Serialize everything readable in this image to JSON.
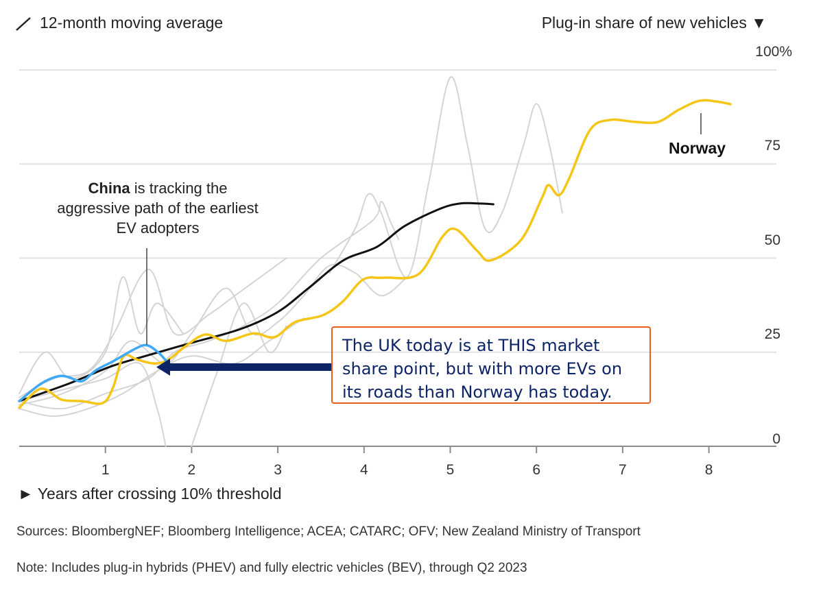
{
  "header": {
    "legend_label": "12-month moving average",
    "legend_icon": "diagonal-line-icon",
    "yaxis_title": "Plug-in share of new vehicles ▼"
  },
  "annotations": {
    "china_bold": "China",
    "china_rest": " is tracking the aggressive path of the earliest EV adopters",
    "norway": "Norway",
    "callout": "The UK today is at THIS market share point, but with more EVs on its roads than Norway has today."
  },
  "footer": {
    "sources": "Sources: BloombergNEF; Bloomberg Intelligence; ACEA; CATARC; OFV; New Zealand Ministry of Transport",
    "note": "Note: Includes plug-in hybrids (PHEV) and fully electric vehicles (BEV), through Q2 2023"
  },
  "colors": {
    "norway": "#f5c518",
    "china": "#3fa9f5",
    "average": "#111111",
    "others": "#d4d4d4",
    "arrow": "#0d2466",
    "callout_border": "#e8601c"
  },
  "chart_data": {
    "type": "line",
    "xlabel": "► Years after crossing 10% threshold",
    "ylabel": "Plug-in share of new vehicles ▼",
    "xlim": [
      0,
      8.6
    ],
    "ylim": [
      0,
      100
    ],
    "xticks": [
      "1",
      "2",
      "3",
      "4",
      "5",
      "6",
      "7",
      "8"
    ],
    "yticks": [
      "0",
      "25",
      "50",
      "75",
      "100%"
    ],
    "grid": true,
    "series": [
      {
        "name": "Norway",
        "role": "norway",
        "points": [
          [
            0,
            10.2
          ],
          [
            0.25,
            15.3
          ],
          [
            0.49,
            12.4
          ],
          [
            0.73,
            12
          ],
          [
            0.97,
            11.5
          ],
          [
            1.09,
            15.7
          ],
          [
            1.21,
            23.9
          ],
          [
            1.37,
            23
          ],
          [
            1.57,
            22
          ],
          [
            1.73,
            23
          ],
          [
            1.93,
            26.6
          ],
          [
            2.16,
            29.7
          ],
          [
            2.4,
            28
          ],
          [
            2.72,
            30
          ],
          [
            2.96,
            29
          ],
          [
            3.2,
            33
          ],
          [
            3.52,
            34.8
          ],
          [
            3.75,
            38.4
          ],
          [
            3.99,
            44.3
          ],
          [
            4.23,
            44.8
          ],
          [
            4.63,
            45.7
          ],
          [
            4.91,
            55.7
          ],
          [
            5.07,
            57.6
          ],
          [
            5.31,
            52
          ],
          [
            5.47,
            49.4
          ],
          [
            5.82,
            54.8
          ],
          [
            6.06,
            65.8
          ],
          [
            6.14,
            69.4
          ],
          [
            6.26,
            66.7
          ],
          [
            6.38,
            71.2
          ],
          [
            6.62,
            84
          ],
          [
            6.85,
            86.7
          ],
          [
            7.14,
            86.2
          ],
          [
            7.41,
            86.2
          ],
          [
            7.65,
            89.4
          ],
          [
            7.89,
            91.8
          ],
          [
            8.09,
            91.6
          ],
          [
            8.25,
            90.9
          ]
        ]
      },
      {
        "name": "China",
        "role": "china",
        "points": [
          [
            0,
            12
          ],
          [
            0.25,
            16.6
          ],
          [
            0.45,
            18.6
          ],
          [
            0.57,
            18.4
          ],
          [
            0.73,
            17.3
          ],
          [
            0.89,
            20.2
          ],
          [
            1.09,
            22.6
          ],
          [
            1.37,
            26.2
          ],
          [
            1.49,
            26.8
          ],
          [
            1.62,
            24.8
          ],
          [
            1.73,
            22
          ]
        ]
      },
      {
        "name": "12-month moving average",
        "role": "average",
        "points": [
          [
            0,
            12
          ],
          [
            0.57,
            16.6
          ],
          [
            1.05,
            21.1
          ],
          [
            1.45,
            23.9
          ],
          [
            2,
            27.5
          ],
          [
            2.56,
            31.1
          ],
          [
            3,
            35.7
          ],
          [
            3.36,
            42.1
          ],
          [
            3.76,
            49.4
          ],
          [
            4.15,
            53
          ],
          [
            4.47,
            58.5
          ],
          [
            4.87,
            63
          ],
          [
            5.11,
            64.5
          ],
          [
            5.35,
            64.5
          ],
          [
            5.5,
            64.3
          ]
        ]
      },
      {
        "role": "other",
        "points": [
          [
            3.6,
            46
          ],
          [
            3.9,
            58
          ],
          [
            4.05,
            67
          ],
          [
            4.2,
            62
          ],
          [
            4.5,
            45
          ],
          [
            4.75,
            70
          ],
          [
            5,
            98
          ],
          [
            5.2,
            80
          ],
          [
            5.4,
            58
          ],
          [
            5.6,
            62
          ],
          [
            5.85,
            80
          ],
          [
            6,
            91
          ],
          [
            6.15,
            80
          ],
          [
            6.3,
            62
          ]
        ]
      },
      {
        "role": "other",
        "points": [
          [
            0,
            12
          ],
          [
            0.5,
            15
          ],
          [
            1,
            18
          ],
          [
            1.4,
            22
          ],
          [
            1.6,
            10
          ],
          [
            1.7,
            0
          ]
        ]
      },
      {
        "role": "other",
        "points": [
          [
            2.0,
            0
          ],
          [
            2.3,
            20
          ],
          [
            2.6,
            38
          ],
          [
            2.9,
            25
          ],
          [
            3.1,
            32
          ]
        ]
      },
      {
        "role": "other",
        "points": [
          [
            0,
            14
          ],
          [
            0.3,
            25
          ],
          [
            0.6,
            18
          ],
          [
            1,
            25
          ],
          [
            1.2,
            45
          ],
          [
            1.4,
            30
          ],
          [
            1.6,
            38
          ],
          [
            1.9,
            30
          ]
        ]
      },
      {
        "role": "other",
        "points": [
          [
            0,
            13
          ],
          [
            0.4,
            18
          ],
          [
            0.8,
            20
          ],
          [
            1.1,
            30
          ],
          [
            1.5,
            47
          ],
          [
            1.8,
            30
          ],
          [
            2.2,
            35
          ],
          [
            2.5,
            40
          ],
          [
            2.8,
            45
          ],
          [
            3.1,
            50
          ]
        ]
      },
      {
        "role": "other",
        "points": [
          [
            0,
            11
          ],
          [
            0.5,
            14
          ],
          [
            1,
            20
          ],
          [
            1.3,
            28
          ],
          [
            1.7,
            22
          ],
          [
            2,
            30
          ],
          [
            2.4,
            42
          ],
          [
            2.7,
            30
          ],
          [
            3,
            33
          ],
          [
            3.3,
            40
          ],
          [
            3.6,
            48
          ],
          [
            3.9,
            46
          ],
          [
            4.2,
            40
          ],
          [
            4.5,
            45
          ]
        ]
      },
      {
        "role": "other",
        "points": [
          [
            0,
            12
          ],
          [
            0.5,
            10
          ],
          [
            1,
            14
          ],
          [
            1.5,
            18
          ],
          [
            1.8,
            25
          ],
          [
            2.2,
            28
          ],
          [
            2.6,
            32
          ],
          [
            3,
            38
          ],
          [
            3.5,
            50
          ],
          [
            4.1,
            60
          ],
          [
            4.2,
            65
          ],
          [
            4.3,
            60
          ],
          [
            4.4,
            55
          ]
        ]
      },
      {
        "role": "other",
        "points": [
          [
            0,
            10
          ],
          [
            0.4,
            8
          ],
          [
            0.8,
            10
          ],
          [
            1.2,
            14
          ],
          [
            1.6,
            20
          ],
          [
            2,
            24
          ],
          [
            2.5,
            22
          ],
          [
            2.9,
            28
          ],
          [
            3.3,
            34
          ]
        ]
      }
    ]
  }
}
